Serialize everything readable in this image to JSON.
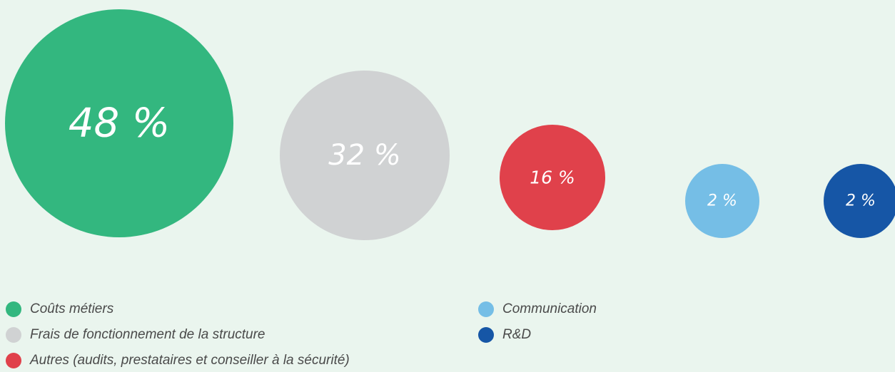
{
  "chart_data": {
    "type": "bubble",
    "series": [
      {
        "name": "Coûts métiers",
        "value": 48,
        "label": "48 %",
        "color": "#33b77f"
      },
      {
        "name": "Frais de fonctionnement de la structure",
        "value": 32,
        "label": "32 %",
        "color": "#d0d2d3"
      },
      {
        "name": "Autres (audits, prestataires et conseiller à la sécurité)",
        "value": 16,
        "label": "16 %",
        "color": "#e0414b"
      },
      {
        "name": "Communication",
        "value": 2,
        "label": "2 %",
        "color": "#75bee6"
      },
      {
        "name": "R&D",
        "value": 2,
        "label": "2 %",
        "color": "#1656a6"
      }
    ],
    "legend_placement": "bottom"
  }
}
